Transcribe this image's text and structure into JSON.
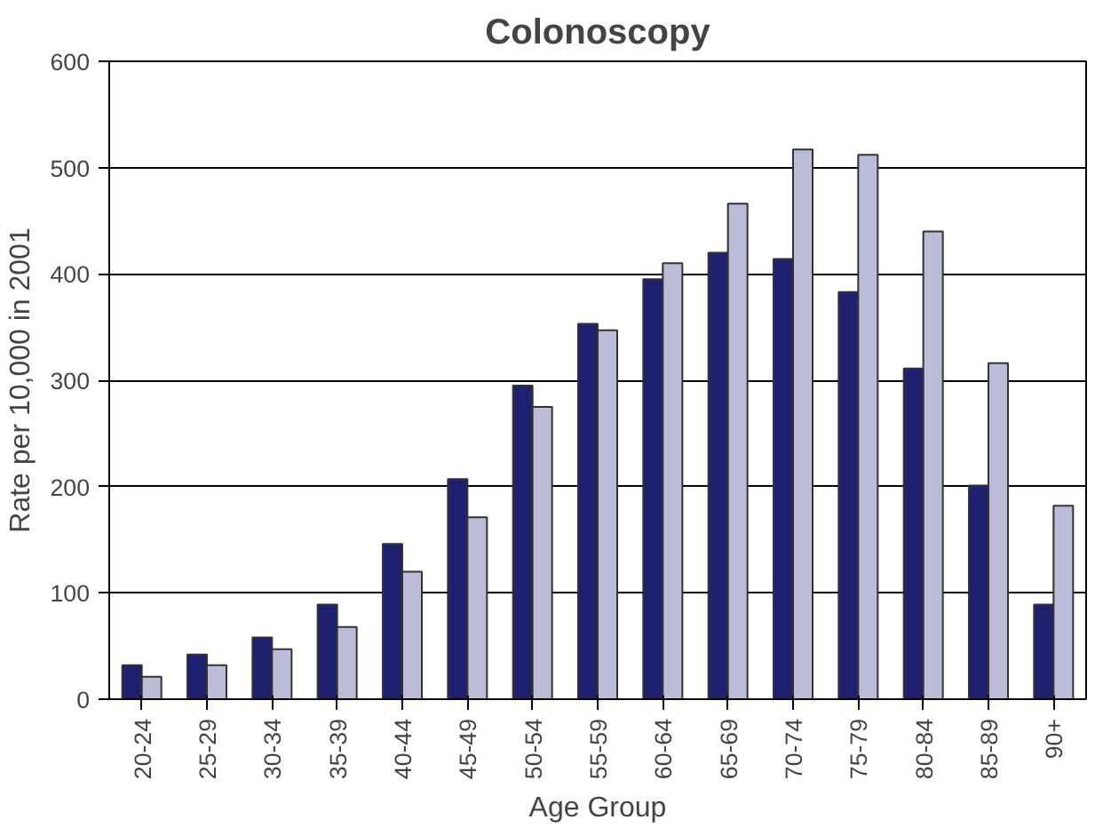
{
  "chart_data": {
    "type": "bar",
    "title": "Colonoscopy",
    "xlabel": "Age Group",
    "ylabel": "Rate per 10,000 in 2001",
    "categories": [
      "20-24",
      "25-29",
      "30-34",
      "35-39",
      "40-44",
      "45-49",
      "50-54",
      "55-59",
      "60-64",
      "65-69",
      "70-74",
      "75-79",
      "80-84",
      "85-89",
      "90+"
    ],
    "series": [
      {
        "color": "#1f2070",
        "values": [
          32,
          42,
          58,
          89,
          146,
          207,
          295,
          353,
          395,
          420,
          414,
          383,
          311,
          201,
          89
        ]
      },
      {
        "color": "#bcbcd8",
        "values": [
          21,
          32,
          47,
          68,
          120,
          171,
          275,
          347,
          410,
          466,
          517,
          512,
          440,
          316,
          182
        ]
      }
    ],
    "ylim": [
      0,
      600
    ],
    "yticks": [
      0,
      100,
      200,
      300,
      400,
      500,
      600
    ],
    "grid": "y"
  }
}
